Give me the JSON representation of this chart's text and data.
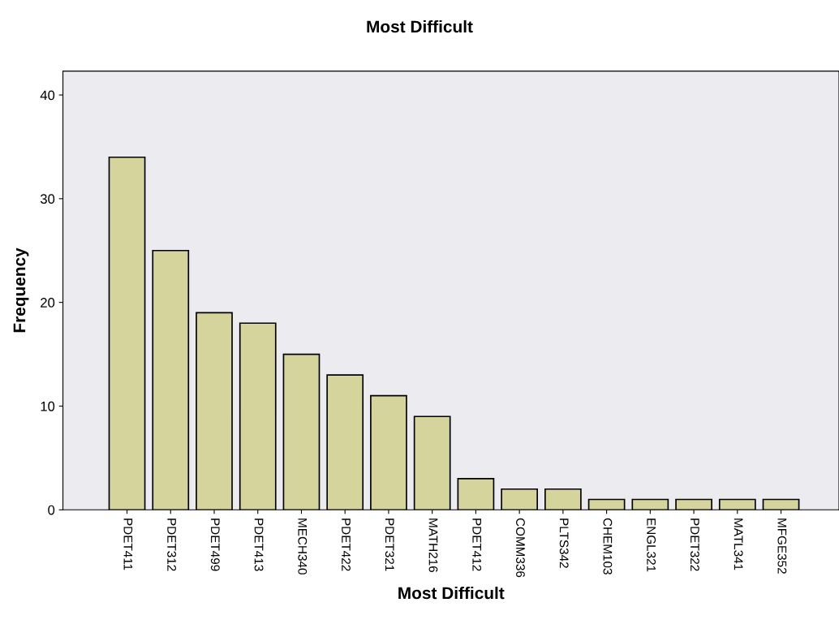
{
  "chart_data": {
    "type": "bar",
    "title": "Most Difficult",
    "xlabel": "Most Difficult",
    "ylabel": "Frequency",
    "categories": [
      "PDET411",
      "PDET312",
      "PDET499",
      "PDET413",
      "MECH340",
      "PDET422",
      "PDET321",
      "MATH216",
      "PDET412",
      "COMM336",
      "PLTS342",
      "CHEM103",
      "ENGL321",
      "PDET322",
      "MATL341",
      "MFGE352"
    ],
    "values": [
      34,
      25,
      19,
      18,
      15,
      13,
      11,
      9,
      3,
      2,
      2,
      1,
      1,
      1,
      1,
      1
    ],
    "color": "#d4d49c",
    "ylim": [
      0,
      42.3
    ],
    "yticks": [
      0,
      10,
      20,
      30,
      40
    ],
    "grid": false
  }
}
